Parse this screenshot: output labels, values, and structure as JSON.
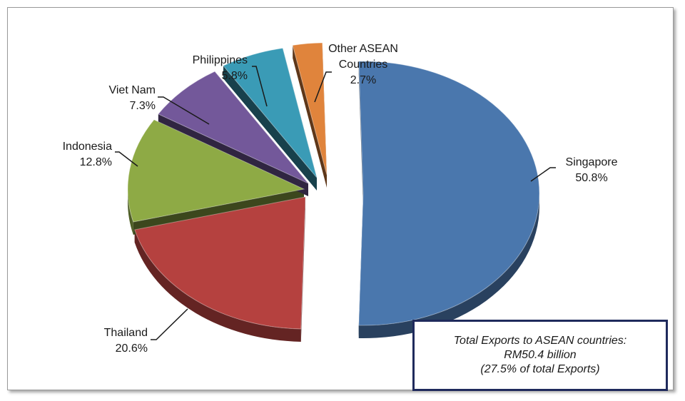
{
  "chart_data": {
    "type": "pie",
    "style": "3d-exploded",
    "title": "",
    "slices": [
      {
        "label": "Singapore",
        "value": 50.8,
        "value_label": "50.8%",
        "color": "#4a77ad"
      },
      {
        "label": "Thailand",
        "value": 20.6,
        "value_label": "20.6%",
        "color": "#b5413f"
      },
      {
        "label": "Indonesia",
        "value": 12.8,
        "value_label": "12.8%",
        "color": "#8eaa45"
      },
      {
        "label": "Viet Nam",
        "value": 7.3,
        "value_label": "7.3%",
        "color": "#73589a"
      },
      {
        "label": "Philippines",
        "value": 5.8,
        "value_label": "5.8%",
        "color": "#3a9bb6"
      },
      {
        "label": "Other ASEAN Countries",
        "label_lines": [
          "Other ASEAN",
          "Countries"
        ],
        "value": 2.7,
        "value_label": "2.7%",
        "color": "#e0843c"
      }
    ],
    "annotation": {
      "lines": [
        "Total Exports to ASEAN countries:",
        "RM50.4 billion",
        "(27.5% of total Exports)"
      ]
    }
  }
}
